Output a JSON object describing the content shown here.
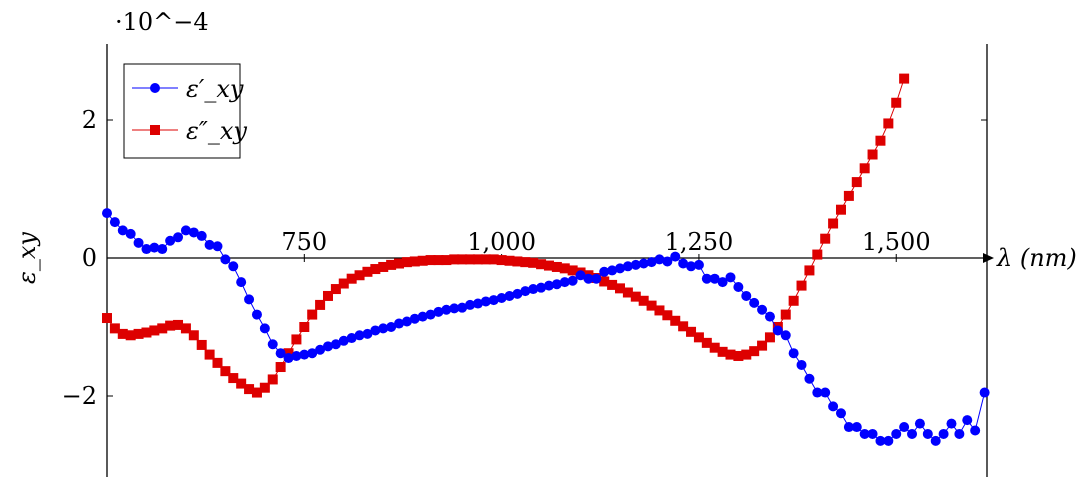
{
  "chart_data": {
    "type": "line",
    "ylabel": "ε_xy",
    "xlabel": "λ (nm)",
    "y_scale_label": "·10^−4",
    "xlim": [
      500,
      1615
    ],
    "ylim": [
      -3.1,
      3.1
    ],
    "x_ticks": [
      750,
      1000,
      1250,
      1500
    ],
    "x_tick_labels": [
      "750",
      "1,000",
      "1,250",
      "1,500"
    ],
    "y_ticks": [
      -2,
      0,
      2
    ],
    "y_tick_labels": [
      "−2",
      "0",
      "2"
    ],
    "legend_position": "top-left",
    "series": [
      {
        "name": "ε′_xy",
        "color": "#0000ff",
        "marker": "circle",
        "points": [
          [
            500,
            0.65
          ],
          [
            510,
            0.52
          ],
          [
            520,
            0.4
          ],
          [
            530,
            0.35
          ],
          [
            540,
            0.22
          ],
          [
            550,
            0.13
          ],
          [
            560,
            0.15
          ],
          [
            570,
            0.13
          ],
          [
            580,
            0.25
          ],
          [
            590,
            0.3
          ],
          [
            600,
            0.4
          ],
          [
            610,
            0.37
          ],
          [
            620,
            0.32
          ],
          [
            630,
            0.19
          ],
          [
            640,
            0.17
          ],
          [
            650,
            -0.02
          ],
          [
            660,
            -0.12
          ],
          [
            670,
            -0.35
          ],
          [
            680,
            -0.6
          ],
          [
            690,
            -0.82
          ],
          [
            700,
            -1.02
          ],
          [
            710,
            -1.25
          ],
          [
            720,
            -1.38
          ],
          [
            730,
            -1.45
          ],
          [
            740,
            -1.42
          ],
          [
            750,
            -1.4
          ],
          [
            760,
            -1.38
          ],
          [
            770,
            -1.33
          ],
          [
            780,
            -1.28
          ],
          [
            790,
            -1.25
          ],
          [
            800,
            -1.2
          ],
          [
            810,
            -1.16
          ],
          [
            820,
            -1.12
          ],
          [
            830,
            -1.1
          ],
          [
            840,
            -1.05
          ],
          [
            850,
            -1.02
          ],
          [
            860,
            -1.0
          ],
          [
            870,
            -0.95
          ],
          [
            880,
            -0.92
          ],
          [
            890,
            -0.88
          ],
          [
            900,
            -0.85
          ],
          [
            910,
            -0.82
          ],
          [
            920,
            -0.78
          ],
          [
            930,
            -0.75
          ],
          [
            940,
            -0.73
          ],
          [
            950,
            -0.72
          ],
          [
            960,
            -0.68
          ],
          [
            970,
            -0.66
          ],
          [
            980,
            -0.63
          ],
          [
            990,
            -0.61
          ],
          [
            1000,
            -0.58
          ],
          [
            1010,
            -0.55
          ],
          [
            1020,
            -0.52
          ],
          [
            1030,
            -0.48
          ],
          [
            1040,
            -0.45
          ],
          [
            1050,
            -0.43
          ],
          [
            1060,
            -0.4
          ],
          [
            1070,
            -0.38
          ],
          [
            1080,
            -0.35
          ],
          [
            1090,
            -0.33
          ],
          [
            1100,
            -0.25
          ],
          [
            1110,
            -0.3
          ],
          [
            1120,
            -0.3
          ],
          [
            1130,
            -0.2
          ],
          [
            1140,
            -0.18
          ],
          [
            1150,
            -0.15
          ],
          [
            1160,
            -0.12
          ],
          [
            1170,
            -0.1
          ],
          [
            1180,
            -0.08
          ],
          [
            1190,
            -0.06
          ],
          [
            1200,
            -0.02
          ],
          [
            1210,
            -0.05
          ],
          [
            1220,
            0.02
          ],
          [
            1230,
            -0.08
          ],
          [
            1240,
            -0.12
          ],
          [
            1250,
            -0.1
          ],
          [
            1260,
            -0.3
          ],
          [
            1270,
            -0.3
          ],
          [
            1280,
            -0.35
          ],
          [
            1290,
            -0.28
          ],
          [
            1300,
            -0.42
          ],
          [
            1310,
            -0.55
          ],
          [
            1320,
            -0.65
          ],
          [
            1330,
            -0.75
          ],
          [
            1340,
            -0.85
          ],
          [
            1350,
            -1.05
          ],
          [
            1360,
            -1.12
          ],
          [
            1370,
            -1.38
          ],
          [
            1380,
            -1.55
          ],
          [
            1390,
            -1.75
          ],
          [
            1400,
            -1.95
          ],
          [
            1410,
            -1.95
          ],
          [
            1420,
            -2.15
          ],
          [
            1430,
            -2.25
          ],
          [
            1440,
            -2.45
          ],
          [
            1450,
            -2.45
          ],
          [
            1460,
            -2.55
          ],
          [
            1470,
            -2.55
          ],
          [
            1480,
            -2.65
          ],
          [
            1490,
            -2.65
          ],
          [
            1500,
            -2.55
          ],
          [
            1510,
            -2.45
          ],
          [
            1520,
            -2.55
          ],
          [
            1530,
            -2.4
          ],
          [
            1540,
            -2.55
          ],
          [
            1550,
            -2.65
          ],
          [
            1560,
            -2.55
          ],
          [
            1570,
            -2.4
          ],
          [
            1580,
            -2.55
          ],
          [
            1590,
            -2.35
          ],
          [
            1600,
            -2.5
          ],
          [
            1612,
            -1.95
          ]
        ]
      },
      {
        "name": "ε″_xy",
        "color": "#dd0000",
        "marker": "square",
        "points": [
          [
            500,
            -0.87
          ],
          [
            510,
            -1.02
          ],
          [
            520,
            -1.1
          ],
          [
            530,
            -1.12
          ],
          [
            540,
            -1.1
          ],
          [
            550,
            -1.08
          ],
          [
            560,
            -1.05
          ],
          [
            570,
            -1.02
          ],
          [
            580,
            -0.98
          ],
          [
            590,
            -0.97
          ],
          [
            600,
            -1.02
          ],
          [
            610,
            -1.12
          ],
          [
            620,
            -1.26
          ],
          [
            630,
            -1.4
          ],
          [
            640,
            -1.52
          ],
          [
            650,
            -1.64
          ],
          [
            660,
            -1.74
          ],
          [
            670,
            -1.82
          ],
          [
            680,
            -1.9
          ],
          [
            690,
            -1.95
          ],
          [
            700,
            -1.88
          ],
          [
            710,
            -1.76
          ],
          [
            720,
            -1.58
          ],
          [
            730,
            -1.38
          ],
          [
            740,
            -1.18
          ],
          [
            750,
            -1.0
          ],
          [
            760,
            -0.82
          ],
          [
            770,
            -0.68
          ],
          [
            780,
            -0.55
          ],
          [
            790,
            -0.45
          ],
          [
            800,
            -0.37
          ],
          [
            810,
            -0.3
          ],
          [
            820,
            -0.25
          ],
          [
            830,
            -0.2
          ],
          [
            840,
            -0.16
          ],
          [
            850,
            -0.13
          ],
          [
            860,
            -0.1
          ],
          [
            870,
            -0.08
          ],
          [
            880,
            -0.06
          ],
          [
            890,
            -0.05
          ],
          [
            900,
            -0.04
          ],
          [
            910,
            -0.03
          ],
          [
            920,
            -0.03
          ],
          [
            930,
            -0.03
          ],
          [
            940,
            -0.02
          ],
          [
            950,
            -0.02
          ],
          [
            960,
            -0.02
          ],
          [
            970,
            -0.02
          ],
          [
            980,
            -0.02
          ],
          [
            990,
            -0.02
          ],
          [
            1000,
            -0.03
          ],
          [
            1010,
            -0.04
          ],
          [
            1020,
            -0.05
          ],
          [
            1030,
            -0.06
          ],
          [
            1040,
            -0.07
          ],
          [
            1050,
            -0.09
          ],
          [
            1060,
            -0.11
          ],
          [
            1070,
            -0.13
          ],
          [
            1080,
            -0.15
          ],
          [
            1090,
            -0.18
          ],
          [
            1100,
            -0.21
          ],
          [
            1110,
            -0.25
          ],
          [
            1120,
            -0.29
          ],
          [
            1130,
            -0.34
          ],
          [
            1140,
            -0.39
          ],
          [
            1150,
            -0.44
          ],
          [
            1160,
            -0.5
          ],
          [
            1170,
            -0.56
          ],
          [
            1180,
            -0.62
          ],
          [
            1190,
            -0.69
          ],
          [
            1200,
            -0.76
          ],
          [
            1210,
            -0.83
          ],
          [
            1220,
            -0.91
          ],
          [
            1230,
            -0.99
          ],
          [
            1240,
            -1.07
          ],
          [
            1250,
            -1.15
          ],
          [
            1260,
            -1.23
          ],
          [
            1270,
            -1.3
          ],
          [
            1280,
            -1.36
          ],
          [
            1290,
            -1.4
          ],
          [
            1300,
            -1.42
          ],
          [
            1310,
            -1.4
          ],
          [
            1320,
            -1.35
          ],
          [
            1330,
            -1.27
          ],
          [
            1340,
            -1.15
          ],
          [
            1350,
            -1.0
          ],
          [
            1360,
            -0.82
          ],
          [
            1370,
            -0.62
          ],
          [
            1380,
            -0.4
          ],
          [
            1390,
            -0.18
          ],
          [
            1400,
            0.05
          ],
          [
            1410,
            0.28
          ],
          [
            1420,
            0.5
          ],
          [
            1430,
            0.7
          ],
          [
            1440,
            0.9
          ],
          [
            1450,
            1.1
          ],
          [
            1460,
            1.3
          ],
          [
            1470,
            1.5
          ],
          [
            1480,
            1.7
          ],
          [
            1490,
            1.95
          ],
          [
            1500,
            2.25
          ],
          [
            1510,
            2.6
          ]
        ]
      }
    ]
  }
}
